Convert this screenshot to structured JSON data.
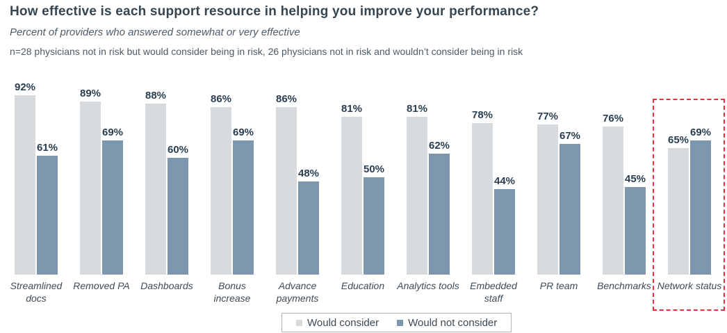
{
  "header": {
    "title": "How effective is each support resource in helping you improve your performance?",
    "subtitle": "Percent of providers who answered somewhat or very effective",
    "note": "n=28 physicians not in risk but would consider being in risk,  26 physicians not in risk and wouldn’t consider being in risk"
  },
  "chart_data": {
    "type": "bar",
    "title": "How effective is each support resource in helping you improve your performance?",
    "subtitle": "Percent of providers who answered somewhat or very effective",
    "categories": [
      "Streamlined docs",
      "Removed PA",
      "Dashboards",
      "Bonus increase",
      "Advance payments",
      "Education",
      "Analytics tools",
      "Embedded staff",
      "PR team",
      "Benchmarks",
      "Network status"
    ],
    "category_label_lines": [
      [
        "Streamlined",
        "docs"
      ],
      [
        "Removed PA"
      ],
      [
        "Dashboards"
      ],
      [
        "Bonus",
        "increase"
      ],
      [
        "Advance",
        "payments"
      ],
      [
        "Education"
      ],
      [
        "Analytics tools"
      ],
      [
        "Embedded",
        "staff"
      ],
      [
        "PR team"
      ],
      [
        "Benchmarks"
      ],
      [
        "Network status"
      ]
    ],
    "series": [
      {
        "name": "Would consider",
        "color": "#d8dbdd",
        "values": [
          92,
          89,
          88,
          86,
          86,
          81,
          81,
          78,
          77,
          76,
          65
        ]
      },
      {
        "name": "Would not consider",
        "color": "#7d98ae",
        "values": [
          61,
          69,
          60,
          69,
          48,
          50,
          62,
          44,
          67,
          45,
          69
        ]
      }
    ],
    "value_suffix": "%",
    "ylim": [
      0,
      100
    ],
    "grid": false,
    "data_labels": true,
    "legend_position": "bottom",
    "highlight": {
      "category": "Network status",
      "style": "red-dashed-outline",
      "color": "#ee2e3e"
    }
  },
  "legend": {
    "items": [
      {
        "label": "Would consider",
        "color": "#d8dbdd"
      },
      {
        "label": "Would not consider",
        "color": "#7d98ae"
      }
    ]
  }
}
